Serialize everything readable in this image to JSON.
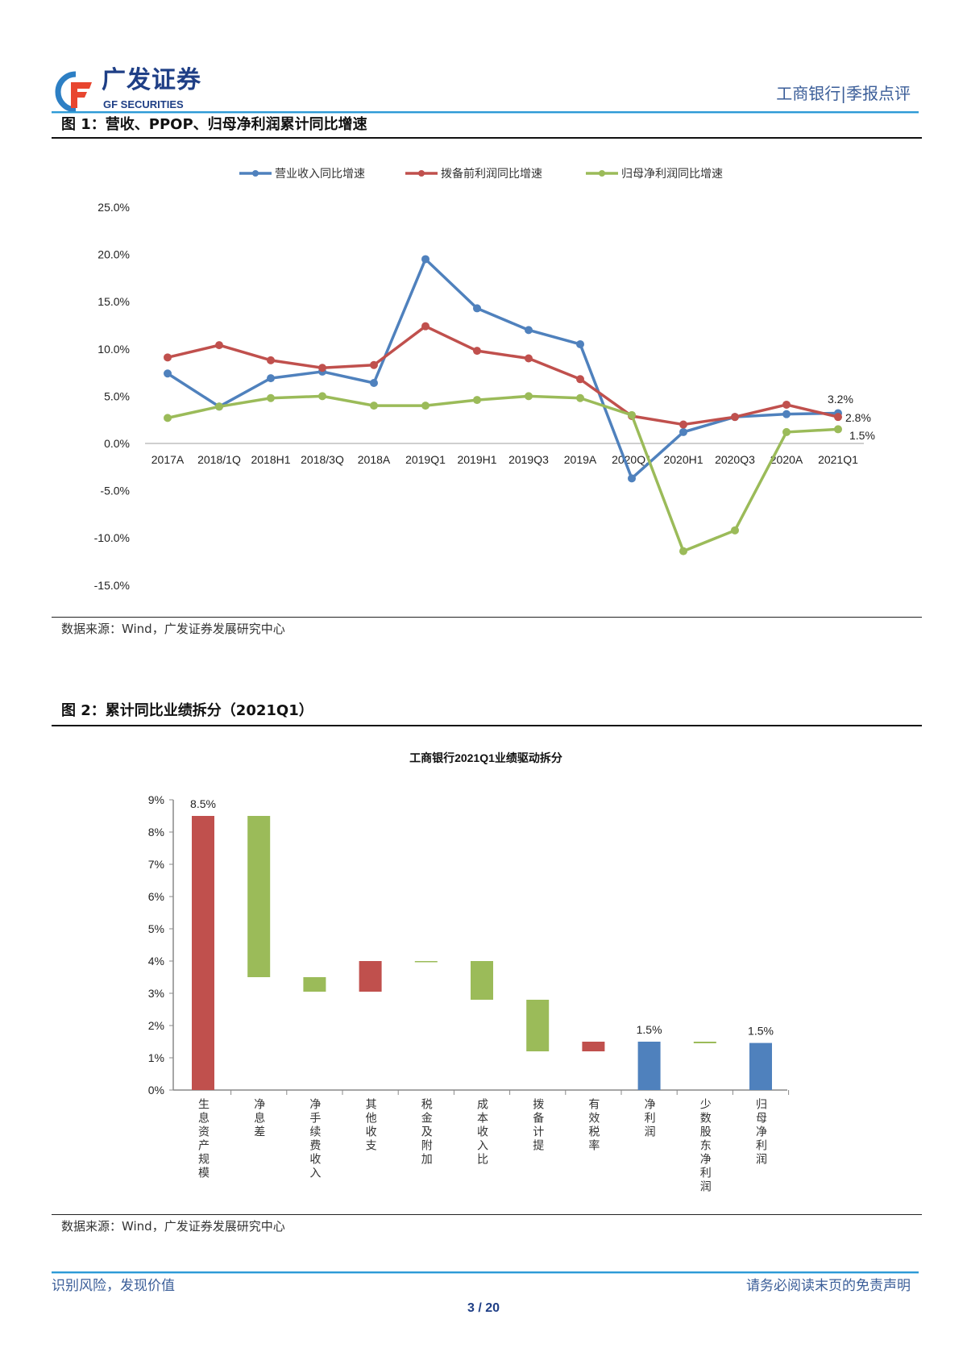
{
  "header": {
    "logo_cn": "广发证券",
    "logo_en": "GF SECURITIES",
    "report_tag": "工商银行|季报点评"
  },
  "figure1": {
    "title": "图 1：营收、PPOP、归母净利润累计同比增速",
    "source": "数据来源：Wind，广发证券发展研究中心"
  },
  "figure2": {
    "title": "图 2：累计同比业绩拆分（2021Q1）",
    "source": "数据来源：Wind，广发证券发展研究中心"
  },
  "footer": {
    "left": "识别风险，发现价值",
    "right": "请务必阅读末页的免责声明",
    "page": "3 / 20"
  },
  "chart_data": [
    {
      "type": "line",
      "title": "",
      "legend_position": "top",
      "categories": [
        "2017A",
        "2018/1Q",
        "2018H1",
        "2018/3Q",
        "2018A",
        "2019Q1",
        "2019H1",
        "2019Q3",
        "2019A",
        "2020Q1",
        "2020H1",
        "2020Q3",
        "2020A",
        "2021Q1"
      ],
      "ylim": [
        -15,
        25
      ],
      "yticks": [
        "25.0%",
        "20.0%",
        "15.0%",
        "10.0%",
        "5.0%",
        "0.0%",
        "-5.0%",
        "-10.0%",
        "-15.0%"
      ],
      "ytick_values": [
        25,
        20,
        15,
        10,
        5,
        0,
        -5,
        -10,
        -15
      ],
      "series": [
        {
          "name": "营业收入同比增速",
          "color": "#4f81bd",
          "values": [
            7.4,
            3.9,
            6.9,
            7.6,
            6.4,
            19.5,
            14.3,
            12.0,
            10.5,
            -3.7,
            1.2,
            2.8,
            3.1,
            3.2
          ],
          "end_label": "3.2%"
        },
        {
          "name": "拨备前利润同比增速",
          "color": "#c0504d",
          "values": [
            9.1,
            10.4,
            8.8,
            8.0,
            8.3,
            12.4,
            9.8,
            9.0,
            6.8,
            2.9,
            2.0,
            2.8,
            4.1,
            2.8
          ],
          "end_label": "2.8%"
        },
        {
          "name": "归母净利润同比增速",
          "color": "#9bbb59",
          "values": [
            2.7,
            3.9,
            4.8,
            5.0,
            4.0,
            4.0,
            4.6,
            5.0,
            4.8,
            3.0,
            -11.4,
            -9.2,
            1.2,
            1.5
          ],
          "end_label": "1.5%"
        }
      ]
    },
    {
      "type": "bar",
      "subtype": "waterfall",
      "title": "工商银行2021Q1业绩驱动拆分",
      "ylim": [
        0,
        9
      ],
      "yticks": [
        "0%",
        "1%",
        "2%",
        "3%",
        "4%",
        "5%",
        "6%",
        "7%",
        "8%",
        "9%"
      ],
      "ytick_values": [
        0,
        1,
        2,
        3,
        4,
        5,
        6,
        7,
        8,
        9
      ],
      "colors": {
        "up": "#c0504d",
        "down": "#9bbb59",
        "total": "#4f81bd"
      },
      "bars": [
        {
          "category": "生息资产规模",
          "low": 0,
          "high": 8.5,
          "kind": "up",
          "label": "8.5%"
        },
        {
          "category": "净息差",
          "low": 3.5,
          "high": 8.5,
          "kind": "down"
        },
        {
          "category": "净手续费收入",
          "low": 3.05,
          "high": 3.5,
          "kind": "down"
        },
        {
          "category": "其他收支",
          "low": 3.05,
          "high": 4.0,
          "kind": "up"
        },
        {
          "category": "税金及附加",
          "low": 3.98,
          "high": 4.0,
          "kind": "down"
        },
        {
          "category": "成本收入比",
          "low": 2.8,
          "high": 4.0,
          "kind": "down"
        },
        {
          "category": "拨备计提",
          "low": 1.2,
          "high": 2.8,
          "kind": "down"
        },
        {
          "category": "有效税率",
          "low": 1.2,
          "high": 1.5,
          "kind": "up"
        },
        {
          "category": "净利润",
          "low": 0,
          "high": 1.5,
          "kind": "total",
          "label": "1.5%"
        },
        {
          "category": "少数股东净利润",
          "low": 1.45,
          "high": 1.5,
          "kind": "down"
        },
        {
          "category": "归母净利润",
          "low": 0,
          "high": 1.46,
          "kind": "total",
          "label": "1.5%"
        }
      ]
    }
  ]
}
